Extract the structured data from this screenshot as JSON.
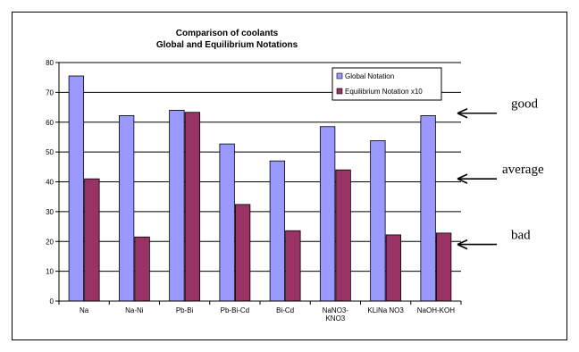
{
  "chart_data": {
    "type": "bar",
    "title": "Comparison of coolants",
    "subtitle": "Global and Equilibrium Notations",
    "categories": [
      "Na",
      "Na-Ni",
      "Pb-Bi",
      "Pb-Bi-Cd",
      "Bi-Cd",
      "NaNO3-KNO3",
      "KLiNa NO3",
      "NaOH-KOH"
    ],
    "category_lines": [
      [
        "Na"
      ],
      [
        "Na-Ni"
      ],
      [
        "Pb-Bi"
      ],
      [
        "Pb-Bi-Cd"
      ],
      [
        "Bi-Cd"
      ],
      [
        "NaNO3-",
        "KNO3"
      ],
      [
        "KLiNa NO3"
      ],
      [
        "NaOH-KOH"
      ]
    ],
    "series": [
      {
        "name": "Global Notation",
        "color": "#9999FF",
        "values": [
          75.5,
          62.2,
          64.0,
          52.7,
          47.0,
          58.5,
          53.8,
          62.2
        ]
      },
      {
        "name": "Equilibrium Notation x10",
        "color": "#993366",
        "values": [
          41.0,
          21.5,
          63.3,
          32.4,
          23.6,
          44.0,
          22.2,
          22.8
        ]
      }
    ],
    "ylim": [
      0,
      80
    ],
    "yticks": [
      0,
      10,
      20,
      30,
      40,
      50,
      60,
      70,
      80
    ],
    "grid": true,
    "legend_position": "top-right",
    "annotations": [
      {
        "text": "good",
        "target_y": 63
      },
      {
        "text": "average",
        "target_y": 41
      },
      {
        "text": "bad",
        "target_y": 19
      }
    ]
  }
}
